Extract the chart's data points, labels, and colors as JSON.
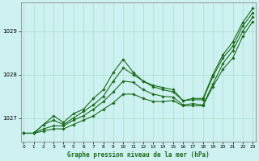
{
  "title": "Graphe pression niveau de la mer (hPa)",
  "bg_color": "#cdf0f0",
  "line_color": "#1a6b1a",
  "grid_color": "#aaddcc",
  "x_ticks": [
    0,
    1,
    2,
    3,
    4,
    5,
    6,
    7,
    8,
    9,
    10,
    11,
    12,
    13,
    14,
    15,
    16,
    17,
    18,
    19,
    20,
    21,
    22,
    23
  ],
  "y_ticks": [
    1027,
    1028,
    1029
  ],
  "ylim": [
    1026.45,
    1029.65
  ],
  "xlim": [
    -0.3,
    23.3
  ],
  "series": [
    [
      1026.65,
      1026.65,
      1026.85,
      1027.05,
      1026.9,
      1027.1,
      1027.2,
      1027.45,
      1027.65,
      1028.05,
      1028.35,
      1028.05,
      1027.85,
      1027.75,
      1027.7,
      1027.65,
      1027.4,
      1027.45,
      1027.45,
      1028.0,
      1028.45,
      1028.75,
      1029.2,
      1029.52
    ],
    [
      1026.65,
      1026.65,
      1026.85,
      1026.95,
      1026.85,
      1027.0,
      1027.15,
      1027.3,
      1027.5,
      1027.85,
      1028.15,
      1028.0,
      1027.85,
      1027.72,
      1027.65,
      1027.6,
      1027.4,
      1027.42,
      1027.42,
      1027.95,
      1028.38,
      1028.65,
      1029.12,
      1029.42
    ],
    [
      1026.65,
      1026.65,
      1026.75,
      1026.82,
      1026.82,
      1026.95,
      1027.05,
      1027.2,
      1027.38,
      1027.6,
      1027.85,
      1027.82,
      1027.65,
      1027.55,
      1027.5,
      1027.48,
      1027.3,
      1027.33,
      1027.3,
      1027.78,
      1028.25,
      1028.55,
      1029.0,
      1029.32
    ],
    [
      1026.65,
      1026.65,
      1026.7,
      1026.75,
      1026.75,
      1026.85,
      1026.95,
      1027.05,
      1027.2,
      1027.35,
      1027.55,
      1027.55,
      1027.45,
      1027.38,
      1027.38,
      1027.4,
      1027.28,
      1027.28,
      1027.28,
      1027.72,
      1028.12,
      1028.38,
      1028.88,
      1029.22
    ]
  ]
}
